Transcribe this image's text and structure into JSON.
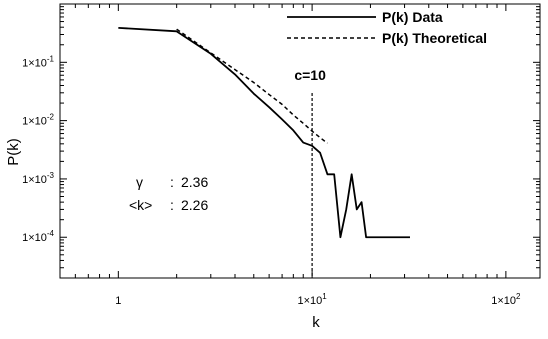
{
  "chart_data": {
    "type": "line",
    "scale": {
      "x": "log",
      "y": "log"
    },
    "xlabel": "k",
    "ylabel": "P(k)",
    "xlim": [
      0.5,
      150
    ],
    "ylim": [
      2e-05,
      1
    ],
    "x_ticks": [
      {
        "value": 1,
        "base": "1",
        "exp": ""
      },
      {
        "value": 10,
        "base": "1×10",
        "exp": "1"
      },
      {
        "value": 100,
        "base": "1×10",
        "exp": "2"
      }
    ],
    "y_ticks": [
      {
        "value": 0.1,
        "base": "1×10",
        "exp": "-1"
      },
      {
        "value": 0.01,
        "base": "1×10",
        "exp": "-2"
      },
      {
        "value": 0.001,
        "base": "1×10",
        "exp": "-3"
      },
      {
        "value": 0.0001,
        "base": "1×10",
        "exp": "-4"
      }
    ],
    "series": [
      {
        "name": "P(k) Data",
        "style": "solid",
        "x": [
          1,
          2,
          3,
          4,
          5,
          6,
          7,
          8,
          9,
          10,
          11,
          12,
          13,
          14,
          15,
          16,
          17,
          18,
          19,
          20,
          32
        ],
        "y": [
          0.39,
          0.34,
          0.14,
          0.062,
          0.029,
          0.017,
          0.0105,
          0.0068,
          0.0042,
          0.0037,
          0.0028,
          0.0012,
          0.0012,
          0.0001,
          0.0003,
          0.0012,
          0.0003,
          0.0004,
          0.0001,
          0.0001,
          0.0001
        ]
      },
      {
        "name": "P(k) Theoretical",
        "style": "dashed",
        "x": [
          2,
          3,
          4,
          5,
          6,
          7,
          8,
          9,
          10,
          11,
          12
        ],
        "y": [
          0.37,
          0.145,
          0.075,
          0.045,
          0.028,
          0.019,
          0.0125,
          0.009,
          0.0066,
          0.0051,
          0.0041
        ]
      }
    ],
    "legend": {
      "position": "top-right",
      "entries": [
        "P(k) Data",
        "P(k) Theoretical"
      ]
    },
    "annotations": {
      "cutoff": {
        "x": 10,
        "label": "c=10"
      },
      "gamma": {
        "symbol": "γ",
        "sep": ":",
        "value": "2.36"
      },
      "mean_k": {
        "symbol": "<k>",
        "sep": ":",
        "value": "2.26"
      }
    },
    "grid": false
  }
}
